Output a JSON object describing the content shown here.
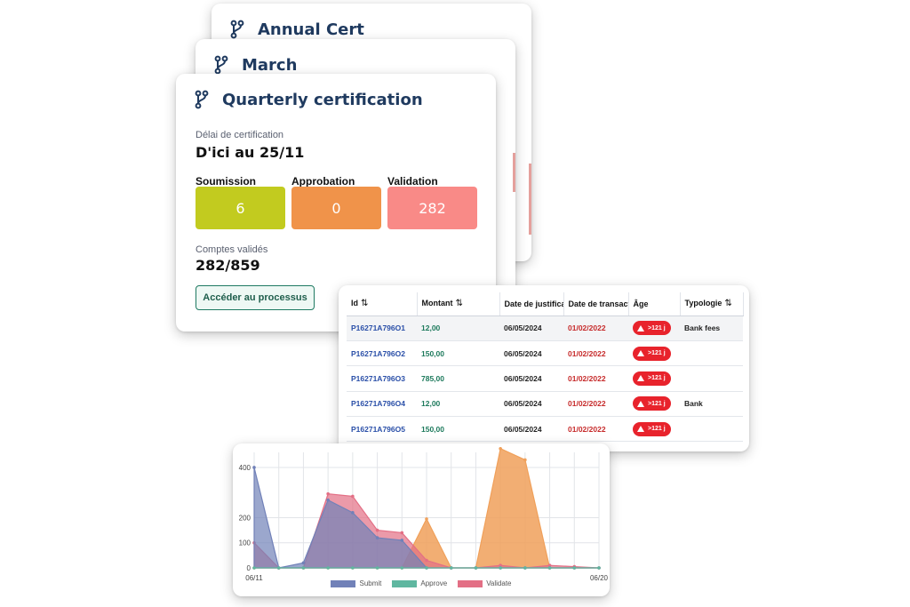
{
  "cards": {
    "annual": {
      "title": "Annual Cert"
    },
    "march": {
      "title": "March"
    },
    "quarterly": {
      "title": "Quarterly certification",
      "deadline_label": "Délai de certification",
      "deadline_value": "D'ici au 25/11",
      "tiles": [
        {
          "label": "Soumission",
          "value": "6",
          "color": "#c2cb1f"
        },
        {
          "label": "Approbation",
          "value": "0",
          "color": "#f0934a"
        },
        {
          "label": "Validation",
          "value": "282",
          "color": "#f98a87"
        }
      ],
      "validated_label": "Comptes validés",
      "validated_value": "282/859",
      "process_button": "Accéder au processus"
    }
  },
  "table": {
    "headers": [
      "Id",
      "Montant",
      "Date de justification",
      "Date de transaction",
      "Âge",
      "Typologie"
    ],
    "rows": [
      {
        "id": "P16271A796O1",
        "amount": "12,00",
        "just": "06/05/2024",
        "trans": "01/02/2022",
        "age": ">121 j",
        "typ": "Bank fees"
      },
      {
        "id": "P16271A796O2",
        "amount": "150,00",
        "just": "06/05/2024",
        "trans": "01/02/2022",
        "age": ">121 j",
        "typ": ""
      },
      {
        "id": "P16271A796O3",
        "amount": "785,00",
        "just": "06/05/2024",
        "trans": "01/02/2022",
        "age": ">121 j",
        "typ": ""
      },
      {
        "id": "P16271A796O4",
        "amount": "12,00",
        "just": "06/05/2024",
        "trans": "01/02/2022",
        "age": ">121 j",
        "typ": "Bank"
      },
      {
        "id": "P16271A796O5",
        "amount": "150,00",
        "just": "06/05/2024",
        "trans": "01/02/2022",
        "age": ">121 j",
        "typ": ""
      }
    ]
  },
  "chart_data": {
    "type": "area",
    "x_tick_labels": [
      "06/11",
      "06/20"
    ],
    "y_ticks": [
      0,
      100,
      200,
      400
    ],
    "ylim": [
      0,
      460
    ],
    "series": [
      {
        "name": "Submit",
        "color": "#7181b8",
        "values": [
          400,
          0,
          20,
          270,
          220,
          120,
          110,
          0,
          0,
          0,
          0,
          0,
          0,
          0,
          0
        ]
      },
      {
        "name": "Approve",
        "color": "#5fb7a0",
        "values": [
          0,
          0,
          0,
          0,
          0,
          0,
          0,
          0,
          0,
          0,
          0,
          0,
          0,
          0,
          0
        ]
      },
      {
        "name": "Validate",
        "color": "#e36f85",
        "values": [
          100,
          0,
          0,
          295,
          285,
          150,
          140,
          30,
          0,
          0,
          10,
          0,
          10,
          5,
          0
        ]
      },
      {
        "name": "",
        "color": "#f0a05a",
        "values": [
          0,
          0,
          0,
          0,
          0,
          0,
          0,
          195,
          0,
          0,
          475,
          430,
          0,
          0,
          0
        ]
      }
    ]
  }
}
